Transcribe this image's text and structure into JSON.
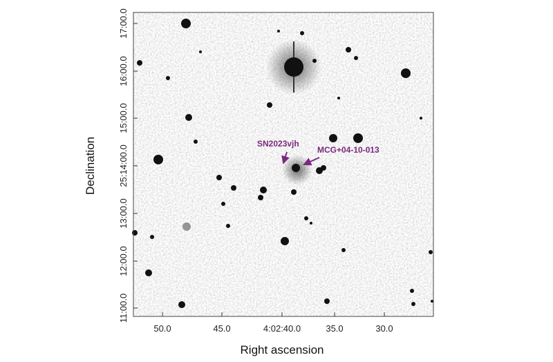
{
  "image": {
    "x_axis": {
      "label": "Right ascension",
      "ticks": [
        "50.0",
        "45.0",
        "4:02:40.0",
        "35.0",
        "30.0"
      ]
    },
    "y_axis": {
      "label": "Declination",
      "ticks": [
        "17:00.0",
        "16:00.0",
        "15:00.0",
        "25:14:00.0",
        "13:00.0",
        "12:00.0",
        "11:00.0"
      ]
    },
    "annotations": [
      "SN2023vjh",
      "MCG+04-10-013"
    ]
  }
}
